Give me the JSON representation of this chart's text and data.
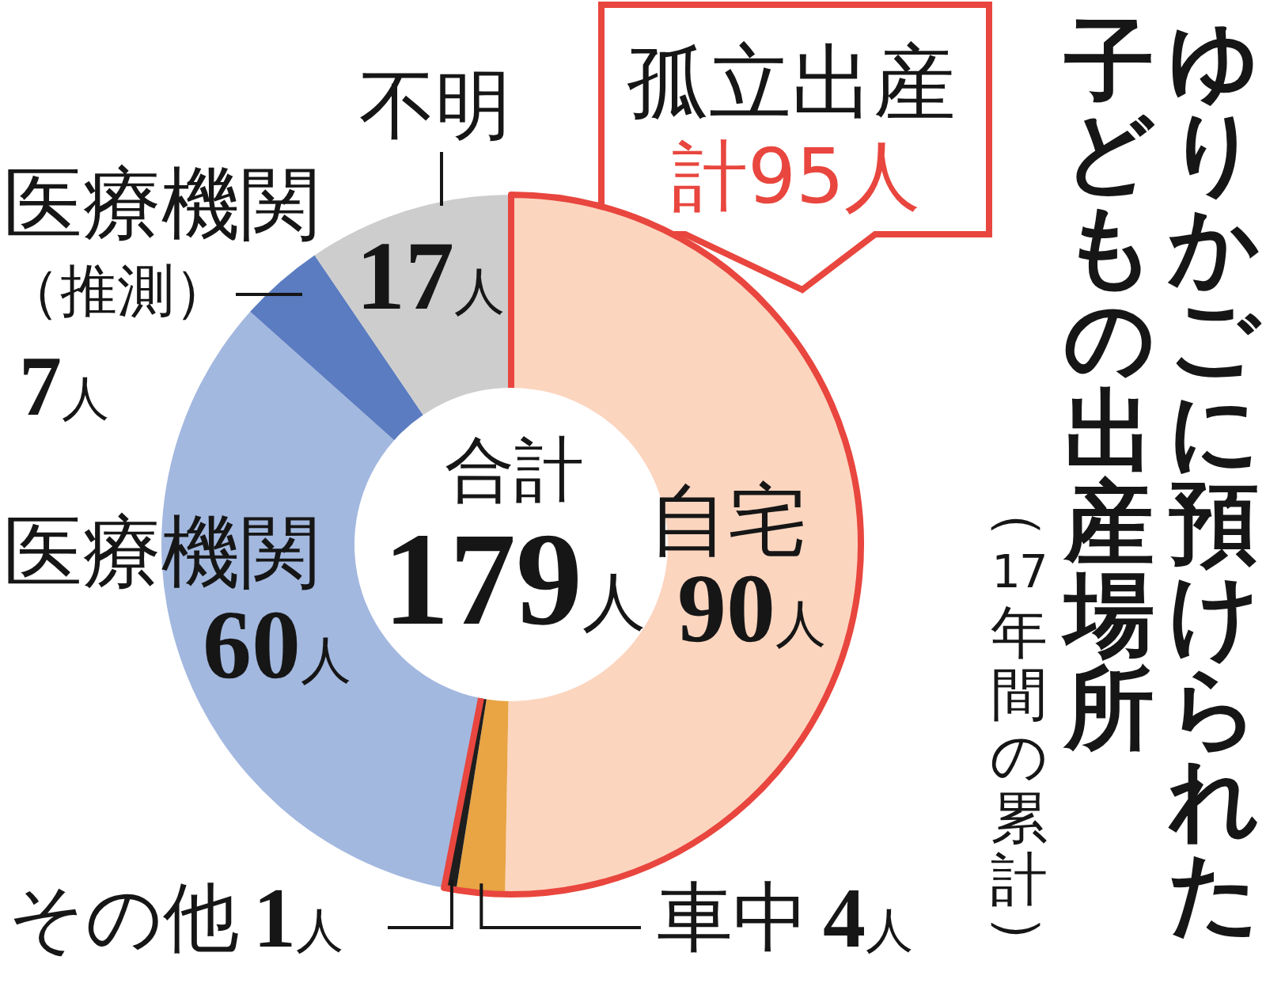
{
  "chart_data": {
    "type": "donut",
    "title": "ゆりかごに預けられた子どもの出産場所",
    "subtitle": "（17年間の累計）",
    "categories": [
      "自宅",
      "車中",
      "その他",
      "医療機関",
      "医療機関（推測）",
      "不明"
    ],
    "values": [
      90,
      4,
      1,
      60,
      7,
      17
    ],
    "colors": [
      "#fcd5bf",
      "#e9a443",
      "#1e1e1e",
      "#a3b8df",
      "#5b7cc0",
      "#cdcdcd"
    ],
    "value_labels": [
      "90人",
      "4人",
      "1人",
      "60人",
      "7人",
      "17人"
    ],
    "annotations": [
      "合計",
      "179人",
      "孤立出産",
      "計95人"
    ]
  }
}
